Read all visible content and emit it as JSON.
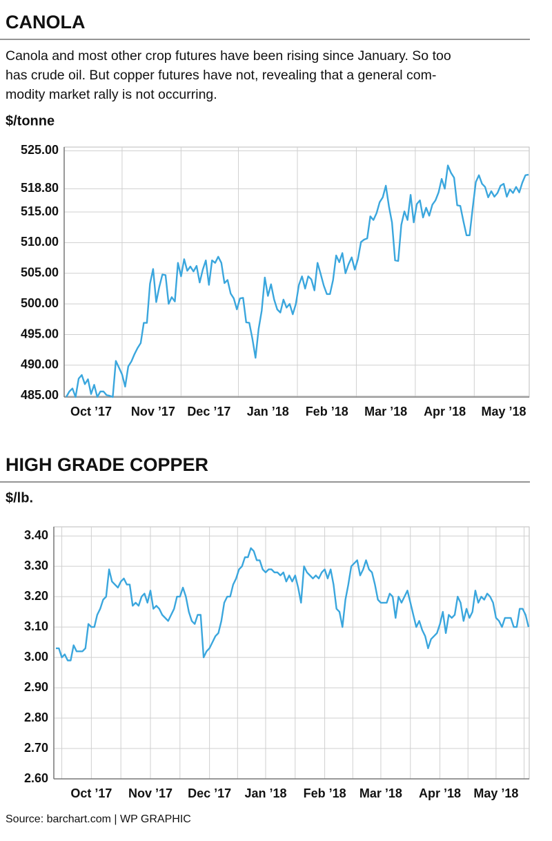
{
  "chart_data": [
    {
      "type": "line",
      "title": "CANOLA",
      "subtitle": [
        "Canola and most other crop futures have been rising since January. So too",
        "has crude oil. But copper futures have not, revealing that a general com-",
        "modity market rally is not occurring."
      ],
      "y_label": "$/tonne",
      "color": "#3aa6dd",
      "grid": true,
      "ylim": [
        484.8,
        525.6
      ],
      "yticks": [
        {
          "value": 485,
          "label": "485.00"
        },
        {
          "value": 490,
          "label": "490.00"
        },
        {
          "value": 495,
          "label": "495.00"
        },
        {
          "value": 500,
          "label": "500.00"
        },
        {
          "value": 505,
          "label": "505.00"
        },
        {
          "value": 510,
          "label": "510.00"
        },
        {
          "value": 515,
          "label": "515.00"
        },
        {
          "value": 518.8,
          "label": "518.80"
        },
        {
          "value": 525,
          "label": "525.00"
        }
      ],
      "categories": [
        null,
        null,
        null,
        null,
        null,
        null,
        null,
        null,
        "Oct ’17",
        null,
        null,
        null,
        null,
        null,
        null,
        null,
        null,
        null,
        null,
        null,
        null,
        null,
        null,
        null,
        null,
        null,
        null,
        null,
        "Nov ’17",
        null,
        null,
        null,
        null,
        null,
        null,
        null,
        null,
        null,
        null,
        null,
        null,
        null,
        null,
        null,
        null,
        null,
        "Dec ’17",
        null,
        null,
        null,
        null,
        null,
        null,
        null,
        null,
        null,
        null,
        null,
        null,
        null,
        null,
        null,
        null,
        null,
        null,
        "Jan ’18",
        null,
        null,
        null,
        null,
        null,
        null,
        null,
        null,
        null,
        null,
        null,
        null,
        null,
        null,
        null,
        null,
        null,
        null,
        "Feb ’18",
        null,
        null,
        null,
        null,
        null,
        null,
        null,
        null,
        null,
        null,
        null,
        null,
        null,
        null,
        null,
        null,
        null,
        null,
        "Mar ’18",
        null,
        null,
        null,
        null,
        null,
        null,
        null,
        null,
        null,
        null,
        null,
        null,
        null,
        null,
        null,
        null,
        null,
        null,
        "Apr ’18",
        null,
        null,
        null,
        null,
        null,
        null,
        null,
        null,
        null,
        null,
        null,
        null,
        null,
        null,
        null,
        null,
        null,
        null,
        "May ’18",
        null,
        null,
        null,
        null,
        null,
        null,
        null,
        null
      ],
      "values": [
        484.8,
        485.7,
        486.2,
        484.8,
        487.8,
        488.4,
        486.9,
        487.7,
        485.3,
        486.8,
        484.8,
        485.7,
        485.7,
        485.1,
        485.0,
        484.8,
        490.7,
        489.6,
        488.5,
        486.5,
        489.8,
        490.6,
        491.8,
        492.8,
        493.6,
        496.9,
        496.9,
        503.3,
        505.7,
        500.3,
        502.8,
        504.8,
        504.7,
        500.0,
        501.1,
        500.4,
        506.7,
        504.5,
        507.3,
        505.4,
        506.1,
        505.3,
        506.2,
        503.5,
        505.6,
        507.1,
        503.1,
        507.1,
        506.7,
        507.7,
        506.7,
        503.4,
        503.9,
        501.7,
        500.9,
        499.1,
        500.9,
        501.0,
        497.0,
        496.9,
        494.3,
        491.2,
        495.9,
        498.9,
        504.3,
        501.3,
        503.2,
        500.7,
        499.1,
        498.6,
        500.7,
        499.4,
        500.0,
        498.3,
        500.0,
        503.1,
        504.5,
        502.5,
        504.5,
        504.0,
        502.2,
        506.7,
        504.9,
        503.0,
        501.6,
        501.6,
        503.9,
        507.9,
        506.8,
        508.3,
        505.0,
        506.5,
        507.6,
        505.6,
        507.3,
        510.1,
        510.5,
        510.7,
        514.3,
        513.7,
        514.8,
        516.6,
        517.4,
        519.3,
        515.9,
        513.3,
        507.1,
        507.0,
        512.9,
        515.1,
        513.7,
        517.8,
        513.3,
        516.3,
        516.9,
        514.1,
        515.7,
        514.4,
        516.2,
        516.9,
        518.2,
        520.4,
        518.8,
        522.6,
        521.4,
        520.6,
        516.1,
        516.0,
        513.5,
        511.2,
        511.2,
        515.7,
        519.9,
        521.0,
        519.6,
        519.1,
        517.4,
        518.4,
        517.5,
        518.1,
        519.3,
        519.6,
        517.5,
        518.7,
        518.1,
        519.1,
        518.2,
        519.8,
        521.0,
        521.1
      ]
    },
    {
      "type": "line",
      "title": "HIGH GRADE COPPER",
      "y_label": "$/lb.",
      "color": "#3aa6dd",
      "grid": true,
      "ylim": [
        2.6,
        3.43
      ],
      "yticks": [
        {
          "value": 2.6,
          "label": "2.60"
        },
        {
          "value": 2.7,
          "label": "2.70"
        },
        {
          "value": 2.8,
          "label": "2.80"
        },
        {
          "value": 2.9,
          "label": "2.90"
        },
        {
          "value": 3,
          "label": "3.00"
        },
        {
          "value": 3.1,
          "label": "3.10"
        },
        {
          "value": 3.2,
          "label": "3.20"
        },
        {
          "value": 3.3,
          "label": "3.30"
        },
        {
          "value": 3.4,
          "label": "3.40"
        }
      ],
      "categories": [
        null,
        null,
        null,
        null,
        null,
        null,
        null,
        null,
        null,
        null,
        null,
        null,
        "Oct ’17",
        null,
        null,
        null,
        null,
        null,
        null,
        null,
        null,
        null,
        null,
        null,
        null,
        null,
        null,
        null,
        null,
        null,
        null,
        null,
        "Nov ’17",
        null,
        null,
        null,
        null,
        null,
        null,
        null,
        null,
        null,
        null,
        null,
        null,
        null,
        null,
        null,
        null,
        null,
        null,
        null,
        "Dec ’17",
        null,
        null,
        null,
        null,
        null,
        null,
        null,
        null,
        null,
        null,
        null,
        null,
        null,
        null,
        null,
        null,
        null,
        null,
        "Jan ’18",
        null,
        null,
        null,
        null,
        null,
        null,
        null,
        null,
        null,
        null,
        null,
        null,
        null,
        null,
        null,
        null,
        null,
        null,
        null,
        "Feb ’18",
        null,
        null,
        null,
        null,
        null,
        null,
        null,
        null,
        null,
        null,
        null,
        null,
        null,
        null,
        null,
        null,
        null,
        null,
        "Mar ’18",
        null,
        null,
        null,
        null,
        null,
        null,
        null,
        null,
        null,
        null,
        null,
        null,
        null,
        null,
        null,
        null,
        null,
        null,
        null,
        "Apr ’18",
        null,
        null,
        null,
        null,
        null,
        null,
        null,
        null,
        null,
        null,
        null,
        null,
        null,
        null,
        null,
        null,
        null,
        null,
        "May ’18",
        null,
        null,
        null,
        null,
        null,
        null,
        null,
        null,
        null,
        null,
        null
      ],
      "values": [
        3.03,
        3.03,
        3.0,
        3.01,
        2.99,
        2.99,
        3.04,
        3.02,
        3.02,
        3.02,
        3.03,
        3.11,
        3.1,
        3.1,
        3.14,
        3.16,
        3.19,
        3.2,
        3.29,
        3.25,
        3.24,
        3.23,
        3.25,
        3.26,
        3.24,
        3.24,
        3.17,
        3.18,
        3.17,
        3.2,
        3.21,
        3.18,
        3.22,
        3.16,
        3.17,
        3.16,
        3.14,
        3.13,
        3.12,
        3.14,
        3.16,
        3.2,
        3.2,
        3.23,
        3.2,
        3.15,
        3.12,
        3.11,
        3.14,
        3.14,
        3.0,
        3.02,
        3.03,
        3.05,
        3.07,
        3.08,
        3.12,
        3.18,
        3.2,
        3.2,
        3.24,
        3.26,
        3.29,
        3.3,
        3.33,
        3.33,
        3.36,
        3.35,
        3.32,
        3.32,
        3.29,
        3.28,
        3.29,
        3.29,
        3.28,
        3.28,
        3.27,
        3.28,
        3.25,
        3.27,
        3.25,
        3.27,
        3.23,
        3.18,
        3.3,
        3.28,
        3.27,
        3.26,
        3.27,
        3.26,
        3.28,
        3.29,
        3.26,
        3.29,
        3.24,
        3.16,
        3.15,
        3.1,
        3.19,
        3.24,
        3.3,
        3.31,
        3.32,
        3.27,
        3.29,
        3.32,
        3.29,
        3.28,
        3.24,
        3.19,
        3.18,
        3.18,
        3.18,
        3.21,
        3.2,
        3.13,
        3.2,
        3.18,
        3.2,
        3.22,
        3.18,
        3.14,
        3.1,
        3.12,
        3.09,
        3.07,
        3.03,
        3.06,
        3.07,
        3.08,
        3.11,
        3.15,
        3.08,
        3.14,
        3.13,
        3.14,
        3.2,
        3.18,
        3.12,
        3.16,
        3.13,
        3.15,
        3.22,
        3.18,
        3.2,
        3.19,
        3.21,
        3.2,
        3.18,
        3.13,
        3.12,
        3.1,
        3.13,
        3.13,
        3.13,
        3.1,
        3.1,
        3.16,
        3.16,
        3.14,
        3.1
      ]
    }
  ],
  "source": "Source: barchart.com  |  WP GRAPHIC"
}
